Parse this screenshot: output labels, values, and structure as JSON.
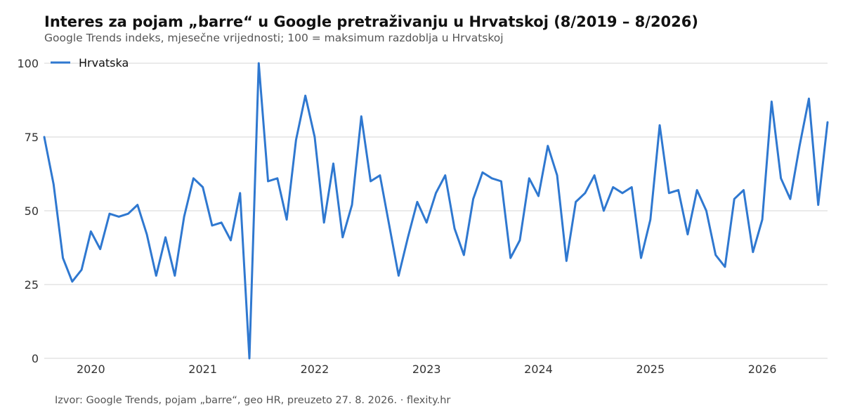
{
  "header": {
    "title": "Interes za pojam „barre“ u Google pretraživanju u Hrvatskoj (8/2019 – 8/2026)",
    "subtitle": "Google Trends indeks, mjesečne vrijednosti; 100 = maksimum razdoblja u Hrvatskoj"
  },
  "footer": {
    "source": "Izvor: Google Trends, pojam „barre“, geo HR, preuzeto 27. 8. 2026. · flexity.hr"
  },
  "colors": {
    "series": "#2f78d0",
    "grid": "#dddddd",
    "axis": "#333333"
  },
  "chart_data": {
    "type": "line",
    "title": "Interes za pojam „barre“ u Google pretraživanju u Hrvatskoj (8/2019 – 8/2026)",
    "subtitle": "Google Trends indeks, mjesečne vrijednosti; 100 = maksimum razdoblja u Hrvatskoj",
    "xlabel": "",
    "ylabel": "",
    "x_start": "2019-08",
    "x_end": "2026-08",
    "xlim": [
      "2019-08",
      "2026-08"
    ],
    "ylim": [
      0,
      100
    ],
    "y_ticks": [
      0,
      25,
      50,
      75,
      100
    ],
    "x_ticks": [
      "2020",
      "2021",
      "2022",
      "2023",
      "2024",
      "2025",
      "2026"
    ],
    "x_tick_dates": [
      "2020-01",
      "2021-01",
      "2022-01",
      "2023-01",
      "2024-01",
      "2025-01",
      "2026-01"
    ],
    "grid": "horizontal",
    "legend_position": "top-left",
    "series": [
      {
        "name": "Hrvatska",
        "color": "#2f78d0",
        "x": [
          "2019-08",
          "2019-09",
          "2019-10",
          "2019-11",
          "2019-12",
          "2020-01",
          "2020-02",
          "2020-03",
          "2020-04",
          "2020-05",
          "2020-06",
          "2020-07",
          "2020-08",
          "2020-09",
          "2020-10",
          "2020-11",
          "2020-12",
          "2021-01",
          "2021-02",
          "2021-03",
          "2021-04",
          "2021-05",
          "2021-06",
          "2021-07",
          "2021-08",
          "2021-09",
          "2021-10",
          "2021-11",
          "2021-12",
          "2022-01",
          "2022-02",
          "2022-03",
          "2022-04",
          "2022-05",
          "2022-06",
          "2022-07",
          "2022-08",
          "2022-09",
          "2022-10",
          "2022-11",
          "2022-12",
          "2023-01",
          "2023-02",
          "2023-03",
          "2023-04",
          "2023-05",
          "2023-06",
          "2023-07",
          "2023-08",
          "2023-09",
          "2023-10",
          "2023-11",
          "2023-12",
          "2024-01",
          "2024-02",
          "2024-03",
          "2024-04",
          "2024-05",
          "2024-06",
          "2024-07",
          "2024-08",
          "2024-09",
          "2024-10",
          "2024-11",
          "2024-12",
          "2025-01",
          "2025-02",
          "2025-03",
          "2025-04",
          "2025-05",
          "2025-06",
          "2025-07",
          "2025-08",
          "2025-09",
          "2025-10",
          "2025-11",
          "2025-12",
          "2026-01",
          "2026-02",
          "2026-03",
          "2026-04",
          "2026-05",
          "2026-06",
          "2026-07",
          "2026-08"
        ],
        "values": [
          75,
          59,
          34,
          26,
          30,
          43,
          37,
          49,
          48,
          49,
          52,
          42,
          28,
          41,
          28,
          48,
          61,
          58,
          45,
          46,
          40,
          56,
          0,
          100,
          60,
          61,
          47,
          74,
          89,
          75,
          46,
          66,
          41,
          52,
          82,
          60,
          62,
          45,
          28,
          41,
          53,
          46,
          56,
          62,
          44,
          35,
          54,
          63,
          61,
          60,
          34,
          40,
          61,
          55,
          72,
          62,
          33,
          53,
          56,
          62,
          50,
          58,
          56,
          58,
          34,
          47,
          79,
          56,
          57,
          42,
          57,
          50,
          35,
          31,
          54,
          57,
          36,
          47,
          87,
          61,
          54,
          72,
          88,
          52,
          80
        ]
      }
    ]
  }
}
